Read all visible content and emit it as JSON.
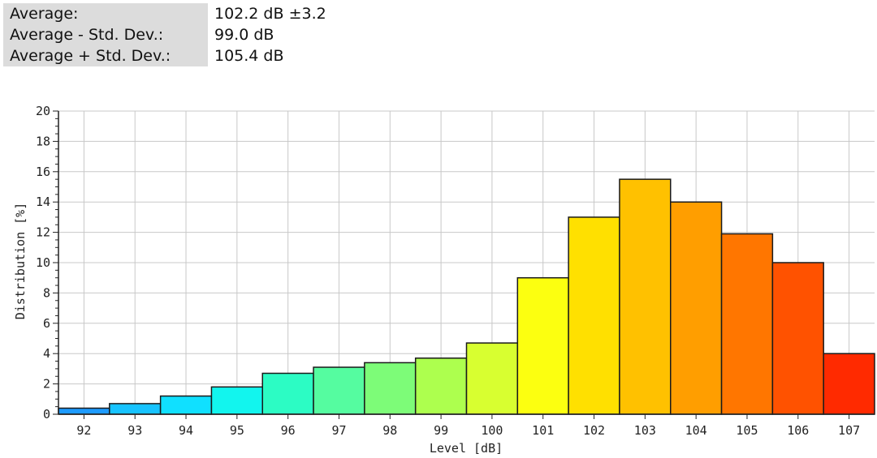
{
  "stats": [
    {
      "label": "Average:",
      "value": "102.2 dB ±3.2"
    },
    {
      "label": "Average - Std. Dev.:",
      "value": "99.0 dB"
    },
    {
      "label": "Average + Std. Dev.:",
      "value": "105.4 dB"
    }
  ],
  "chart_data": {
    "type": "bar",
    "title": "",
    "xlabel": "Level [dB]",
    "ylabel": "Distribution [%]",
    "ylim": [
      0,
      20
    ],
    "yticks": [
      0,
      2,
      4,
      6,
      8,
      10,
      12,
      14,
      16,
      18,
      20
    ],
    "grid": true,
    "categories": [
      "92",
      "93",
      "94",
      "95",
      "96",
      "97",
      "98",
      "99",
      "100",
      "101",
      "102",
      "103",
      "104",
      "105",
      "106",
      "107"
    ],
    "values": [
      0.4,
      0.7,
      1.2,
      1.8,
      2.7,
      3.1,
      3.4,
      3.7,
      4.7,
      9.0,
      13.0,
      15.5,
      14.0,
      11.9,
      10.0,
      4.0
    ],
    "colors": [
      "#1e9bff",
      "#17c3ff",
      "#10e0ff",
      "#12f5ee",
      "#2cfcc4",
      "#55fca0",
      "#7dfc78",
      "#adff4e",
      "#d8ff30",
      "#fcff10",
      "#ffe000",
      "#ffc100",
      "#ff9e00",
      "#ff7600",
      "#ff5200",
      "#ff2a00"
    ]
  }
}
